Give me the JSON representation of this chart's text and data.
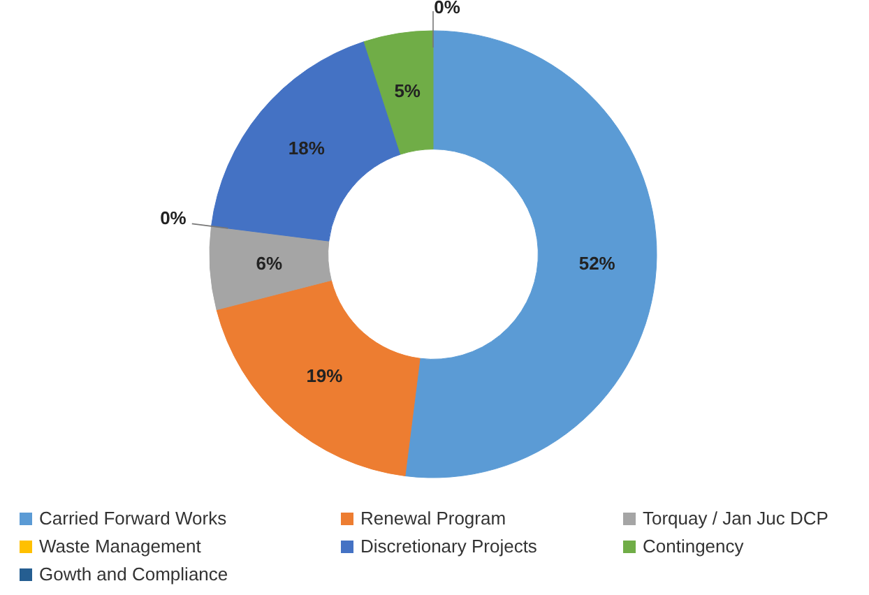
{
  "chart_data": {
    "type": "donut",
    "categories": [
      "Carried Forward Works",
      "Renewal Program",
      "Torquay / Jan Juc DCP",
      "Waste Management",
      "Discretionary Projects",
      "Contingency",
      "Gowth and Compliance"
    ],
    "values": [
      52,
      19,
      6,
      0,
      18,
      5,
      0
    ],
    "colors": [
      "#5b9bd5",
      "#ed7d31",
      "#a5a5a5",
      "#ffc000",
      "#4472c4",
      "#70ad47",
      "#255e91"
    ],
    "value_labels": [
      "52%",
      "19%",
      "6%",
      "0%",
      "18%",
      "5%",
      "0%"
    ],
    "legend": "bottom"
  }
}
